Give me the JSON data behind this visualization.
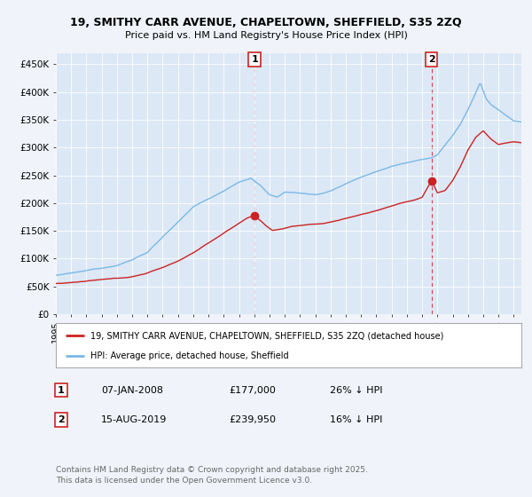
{
  "title_line1": "19, SMITHY CARR AVENUE, CHAPELTOWN, SHEFFIELD, S35 2ZQ",
  "title_line2": "Price paid vs. HM Land Registry's House Price Index (HPI)",
  "ylim": [
    0,
    470000
  ],
  "yticks": [
    0,
    50000,
    100000,
    150000,
    200000,
    250000,
    300000,
    350000,
    400000,
    450000
  ],
  "ytick_labels": [
    "£0",
    "£50K",
    "£100K",
    "£150K",
    "£200K",
    "£250K",
    "£300K",
    "£350K",
    "£400K",
    "£450K"
  ],
  "hpi_color": "#7ab8e8",
  "price_color": "#cc2222",
  "vline_color": "#cc3333",
  "marker1_year": 2008.019,
  "marker1_price": 177000,
  "marker1_date_str": "07-JAN-2008",
  "marker1_hpi_pct": "26% ↓ HPI",
  "marker2_year": 2019.619,
  "marker2_price": 239950,
  "marker2_date_str": "15-AUG-2019",
  "marker2_hpi_pct": "16% ↓ HPI",
  "legend_label1": "19, SMITHY CARR AVENUE, CHAPELTOWN, SHEFFIELD, S35 2ZQ (detached house)",
  "legend_label2": "HPI: Average price, detached house, Sheffield",
  "footer_text": "Contains HM Land Registry data © Crown copyright and database right 2025.\nThis data is licensed under the Open Government Licence v3.0.",
  "background_color": "#f0f4fa",
  "plot_bg_color": "#dce8f5",
  "grid_color": "#ffffff"
}
